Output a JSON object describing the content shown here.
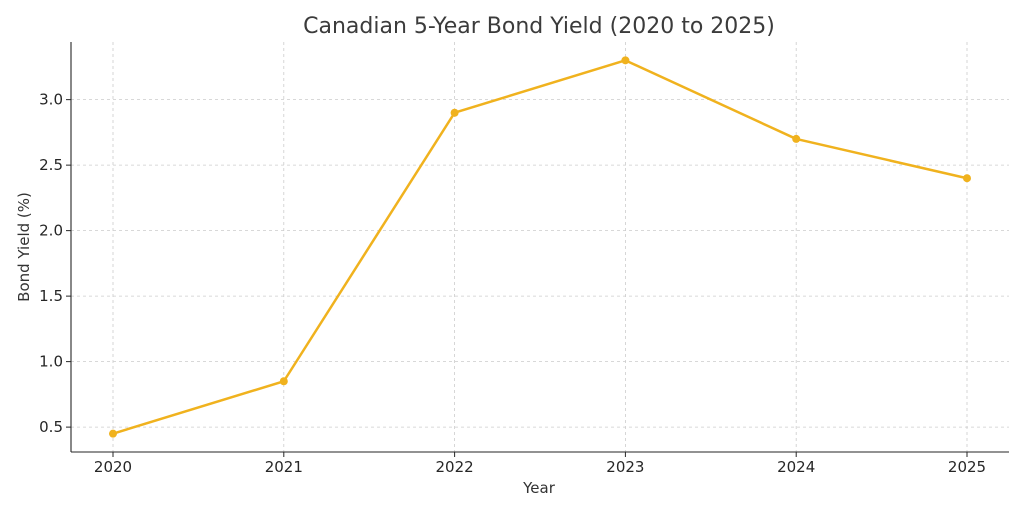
{
  "chart_data": {
    "type": "line",
    "title": "Canadian 5-Year Bond Yield (2020 to 2025)",
    "xlabel": "Year",
    "ylabel": "Bond Yield (%)",
    "x": [
      "2020",
      "2021",
      "2022",
      "2023",
      "2024",
      "2025"
    ],
    "series": [
      {
        "values": [
          0.45,
          0.85,
          2.9,
          3.3,
          2.7,
          2.4
        ],
        "color": "#f0b21e"
      }
    ],
    "yticks": [
      "0.5",
      "1.0",
      "1.5",
      "2.0",
      "2.5",
      "3.0"
    ],
    "ylim": [
      0.31,
      3.44
    ],
    "grid": true,
    "legend": "none"
  }
}
